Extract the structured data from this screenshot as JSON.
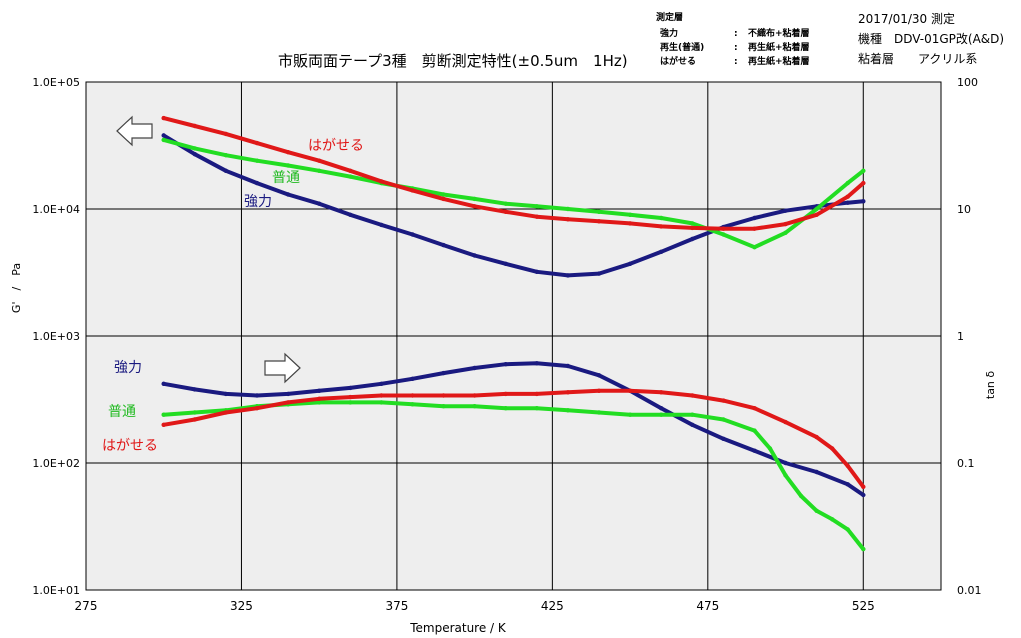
{
  "header": {
    "date_line": "2017/01/30 測定",
    "model_line": "機種　DDV-01GP改(A&D)",
    "adhesive_line": "粘着層　　アクリル系"
  },
  "legend": {
    "title": "測定層",
    "rows": [
      {
        "name": "強力",
        "desc": "不織布+粘着層",
        "color": "#3a7ab8"
      },
      {
        "name": "再生(普通)",
        "desc": "再生紙+粘着層",
        "color": "#22bb22"
      },
      {
        "name": "はがせる",
        "desc": "再生紙+粘着層",
        "color": "#e02020"
      }
    ],
    "separator": ":"
  },
  "chart_data": {
    "type": "line",
    "title": "市販両面テープ3種　剪断測定特性(±0.5um　1Hz)",
    "xlabel": "Temperature / K",
    "ylabel_left": "G'　/　Pa",
    "ylabel_right": "tan δ",
    "xlim": [
      275,
      550
    ],
    "x_ticks": [
      "275",
      "325",
      "375",
      "425",
      "475",
      "525"
    ],
    "x_tick_values": [
      275,
      325,
      375,
      425,
      475,
      525
    ],
    "ylim_left": [
      10,
      100000
    ],
    "y_ticks_left": [
      "1.0E+01",
      "1.0E+02",
      "1.0E+03",
      "1.0E+04",
      "1.0E+05"
    ],
    "y_tick_values_left": [
      10,
      100,
      1000,
      10000,
      100000
    ],
    "ylim_right": [
      0.01,
      100
    ],
    "y_ticks_right": [
      "0.01",
      "0.1",
      "1",
      "10",
      "100"
    ],
    "y_tick_values_right": [
      0.01,
      0.1,
      1,
      10,
      100
    ],
    "scale": "log",
    "grid": true,
    "plot_background": "#eeeeee",
    "annotations": {
      "strong_upper": "強力",
      "normal_upper": "普通",
      "peelable_upper": "はがせる",
      "strong_lower": "強力",
      "normal_lower": "普通",
      "peelable_lower": "はがせる"
    },
    "series": [
      {
        "label": "強力 G'",
        "color": "#1a1a80",
        "axis": "left",
        "x": [
          300,
          310,
          320,
          330,
          340,
          350,
          360,
          370,
          380,
          390,
          400,
          410,
          420,
          430,
          440,
          450,
          460,
          470,
          480,
          490,
          500,
          510,
          520,
          525
        ],
        "y": [
          38000,
          27000,
          20000,
          16000,
          13000,
          11000,
          9000,
          7500,
          6300,
          5200,
          4300,
          3700,
          3200,
          3000,
          3100,
          3700,
          4600,
          5800,
          7200,
          8500,
          9700,
          10500,
          11200,
          11500
        ]
      },
      {
        "label": "普通 G'",
        "color": "#22dd22",
        "axis": "left",
        "x": [
          300,
          310,
          320,
          330,
          340,
          350,
          360,
          370,
          380,
          390,
          400,
          410,
          420,
          430,
          440,
          450,
          460,
          470,
          480,
          490,
          500,
          510,
          520,
          525
        ],
        "y": [
          35000,
          30000,
          26500,
          24000,
          22000,
          20000,
          18000,
          16000,
          14500,
          13000,
          12000,
          11000,
          10500,
          10000,
          9500,
          9000,
          8500,
          7700,
          6300,
          5000,
          6500,
          10000,
          16000,
          20000
        ]
      },
      {
        "label": "はがせる G'",
        "color": "#e01818",
        "axis": "left",
        "x": [
          300,
          310,
          320,
          330,
          340,
          350,
          360,
          370,
          380,
          390,
          400,
          410,
          420,
          430,
          440,
          450,
          460,
          470,
          480,
          490,
          500,
          510,
          520,
          525
        ],
        "y": [
          52000,
          45000,
          39000,
          33000,
          28000,
          24000,
          20000,
          16500,
          14000,
          12000,
          10500,
          9500,
          8700,
          8300,
          8000,
          7700,
          7300,
          7100,
          7000,
          7000,
          7600,
          9000,
          12500,
          16000
        ]
      },
      {
        "label": "強力 tan δ",
        "color": "#1a1a80",
        "axis": "right",
        "x": [
          300,
          310,
          320,
          330,
          340,
          350,
          360,
          370,
          380,
          390,
          400,
          410,
          420,
          430,
          440,
          450,
          460,
          470,
          480,
          490,
          500,
          510,
          520,
          525
        ],
        "y": [
          0.42,
          0.38,
          0.35,
          0.34,
          0.35,
          0.37,
          0.39,
          0.42,
          0.46,
          0.51,
          0.56,
          0.6,
          0.61,
          0.58,
          0.49,
          0.37,
          0.27,
          0.2,
          0.155,
          0.125,
          0.1,
          0.085,
          0.068,
          0.056
        ]
      },
      {
        "label": "普通 tan δ",
        "color": "#22dd22",
        "axis": "right",
        "x": [
          300,
          310,
          320,
          330,
          340,
          350,
          360,
          370,
          380,
          390,
          400,
          410,
          420,
          430,
          440,
          450,
          460,
          470,
          480,
          490,
          495,
          500,
          505,
          510,
          515,
          520,
          525
        ],
        "y": [
          0.24,
          0.25,
          0.26,
          0.28,
          0.29,
          0.3,
          0.3,
          0.3,
          0.29,
          0.28,
          0.28,
          0.27,
          0.27,
          0.26,
          0.25,
          0.24,
          0.24,
          0.24,
          0.22,
          0.18,
          0.13,
          0.08,
          0.055,
          0.042,
          0.036,
          0.03,
          0.021
        ]
      },
      {
        "label": "はがせる tan δ",
        "color": "#e01818",
        "axis": "right",
        "x": [
          300,
          310,
          320,
          330,
          340,
          350,
          360,
          370,
          380,
          390,
          400,
          410,
          420,
          430,
          440,
          450,
          460,
          470,
          480,
          490,
          500,
          510,
          515,
          520,
          525
        ],
        "y": [
          0.2,
          0.22,
          0.25,
          0.27,
          0.3,
          0.32,
          0.33,
          0.34,
          0.34,
          0.34,
          0.34,
          0.35,
          0.35,
          0.36,
          0.37,
          0.37,
          0.36,
          0.34,
          0.31,
          0.27,
          0.21,
          0.16,
          0.13,
          0.095,
          0.065
        ]
      }
    ]
  }
}
